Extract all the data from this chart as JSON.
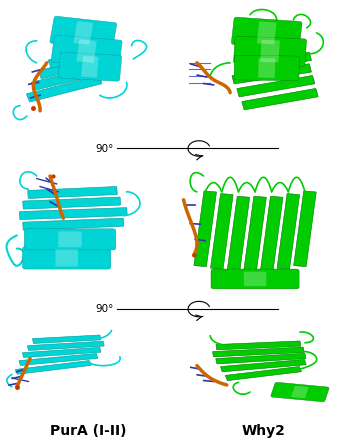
{
  "label_left": "PurA (I-II)",
  "label_right": "Why2",
  "label_fontsize": 10,
  "label_fontweight": "bold",
  "rotation_label": "90°",
  "background_color": "#ffffff",
  "cyan_color": "#00d4d4",
  "cyan_dark": "#009999",
  "cyan_light": "#66e8e8",
  "green_color": "#00cc00",
  "green_dark": "#007700",
  "green_light": "#66ee66",
  "orange_color": "#cc6600",
  "orange_light": "#ee8833",
  "blue_color": "#3333aa",
  "blue_light": "#6666cc",
  "red_color": "#cc3300",
  "fig_width": 3.5,
  "fig_height": 4.4,
  "dpi": 100
}
